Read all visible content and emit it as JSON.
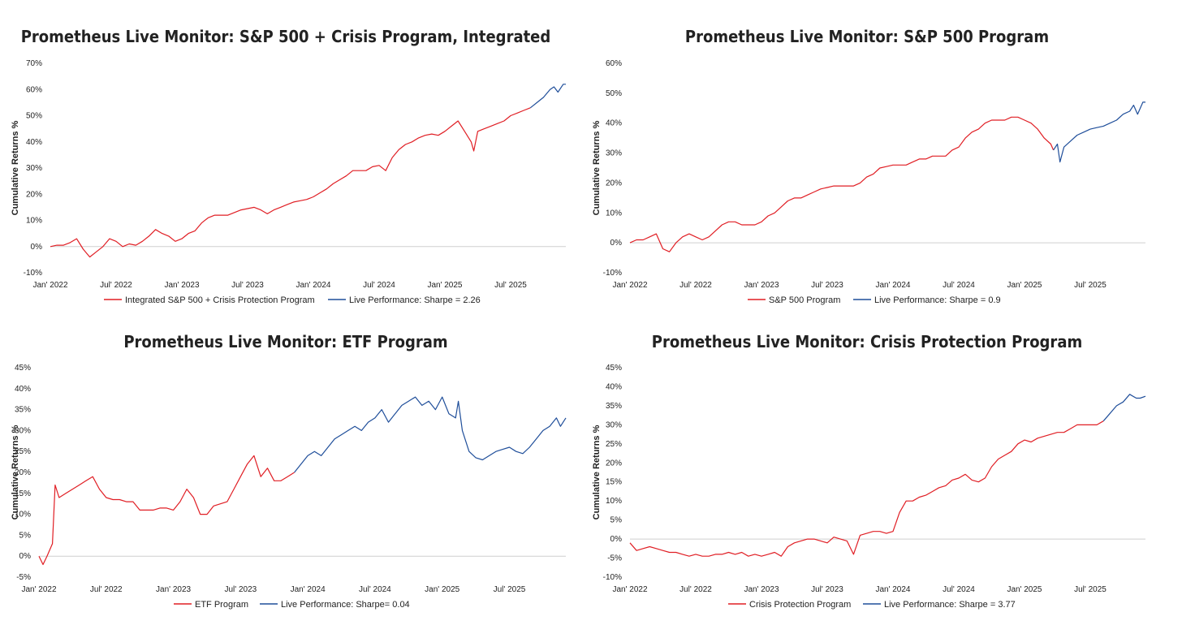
{
  "colors": {
    "backtest": "#e01e24",
    "live": "#1f4e9a",
    "axis": "#cfcfcf",
    "text": "#222222"
  },
  "chart_data": [
    {
      "type": "line",
      "title": "Prometheus Live Monitor: S&P 500 + Crisis Program, Integrated",
      "ylabel": "Cumulative Returns %",
      "xlabel": "",
      "ylim": [
        -10,
        70
      ],
      "yticks": [
        -10,
        0,
        10,
        20,
        30,
        40,
        50,
        60,
        70
      ],
      "ytick_labels": [
        "-10%",
        "0%",
        "10%",
        "20%",
        "30%",
        "40%",
        "50%",
        "60%",
        "70%"
      ],
      "xlim": [
        2022.0,
        2025.92
      ],
      "xticks": [
        2022.0,
        2022.5,
        2023.0,
        2023.5,
        2024.0,
        2024.5,
        2025.0,
        2025.5
      ],
      "xtick_labels": [
        "Jan' 2022",
        "Jul' 2022",
        "Jan' 2023",
        "Jul' 2023",
        "Jan' 2024",
        "Jul' 2024",
        "Jan' 2025",
        "Jul' 2025"
      ],
      "series": [
        {
          "name": "Integrated S&P 500 + Crisis Protection Program",
          "color": "backtest",
          "x": [
            2022.0,
            2022.05,
            2022.1,
            2022.15,
            2022.2,
            2022.25,
            2022.3,
            2022.35,
            2022.4,
            2022.45,
            2022.5,
            2022.55,
            2022.6,
            2022.65,
            2022.7,
            2022.75,
            2022.8,
            2022.85,
            2022.9,
            2022.95,
            2023.0,
            2023.05,
            2023.1,
            2023.15,
            2023.2,
            2023.25,
            2023.3,
            2023.35,
            2023.4,
            2023.45,
            2023.5,
            2023.55,
            2023.6,
            2023.65,
            2023.7,
            2023.75,
            2023.8,
            2023.85,
            2023.9,
            2023.95,
            2024.0,
            2024.05,
            2024.1,
            2024.15,
            2024.2,
            2024.25,
            2024.3,
            2024.35,
            2024.4,
            2024.45,
            2024.5,
            2024.55,
            2024.6,
            2024.65,
            2024.7,
            2024.75,
            2024.8,
            2024.85,
            2024.9,
            2024.95,
            2025.0,
            2025.05,
            2025.1,
            2025.15,
            2025.2,
            2025.22,
            2025.25,
            2025.3,
            2025.35,
            2025.4,
            2025.45,
            2025.5,
            2025.55,
            2025.6,
            2025.65
          ],
          "y": [
            0,
            0.5,
            0.5,
            1.5,
            3,
            -1,
            -4,
            -2,
            0,
            3,
            2,
            0,
            1,
            0.5,
            2,
            4,
            6.5,
            5,
            4,
            2,
            3,
            5,
            6,
            9,
            11,
            12,
            12,
            12,
            13,
            14,
            14.5,
            15,
            14,
            12.5,
            14,
            15,
            16,
            17,
            17.5,
            18,
            19,
            20.5,
            22,
            24,
            25.5,
            27,
            29,
            29,
            29,
            30.5,
            31,
            29,
            34,
            37,
            39,
            40,
            41.5,
            42.5,
            43,
            42.5,
            44,
            46,
            48,
            44,
            40,
            36.5,
            44,
            45,
            46,
            47,
            48,
            50,
            51,
            52,
            53
          ]
        },
        {
          "name": "Live Performance: Sharpe = 2.26",
          "color": "live",
          "x": [
            2025.65,
            2025.7,
            2025.75,
            2025.8,
            2025.83,
            2025.86,
            2025.9,
            2025.92
          ],
          "y": [
            53,
            55,
            57,
            60,
            61,
            59,
            62,
            62
          ]
        }
      ]
    },
    {
      "type": "line",
      "title": "Prometheus Live Monitor: S&P 500 Program",
      "ylabel": "Cumulative Returns %",
      "xlabel": "",
      "ylim": [
        -10,
        60
      ],
      "yticks": [
        -10,
        0,
        10,
        20,
        30,
        40,
        50,
        60
      ],
      "ytick_labels": [
        "-10%",
        "0%",
        "10%",
        "20%",
        "30%",
        "40%",
        "50%",
        "60%"
      ],
      "xlim": [
        2022.0,
        2025.92
      ],
      "xticks": [
        2022.0,
        2022.5,
        2023.0,
        2023.5,
        2024.0,
        2024.5,
        2025.0,
        2025.5
      ],
      "xtick_labels": [
        "Jan' 2022",
        "Jul' 2022",
        "Jan' 2023",
        "Jul' 2023",
        "Jan' 2024",
        "Jul' 2024",
        "Jan' 2025",
        "Jul' 2025"
      ],
      "series": [
        {
          "name": "S&P 500 Program",
          "color": "backtest",
          "x": [
            2022.0,
            2022.05,
            2022.1,
            2022.15,
            2022.2,
            2022.25,
            2022.3,
            2022.35,
            2022.4,
            2022.45,
            2022.5,
            2022.55,
            2022.6,
            2022.65,
            2022.7,
            2022.75,
            2022.8,
            2022.85,
            2022.9,
            2022.95,
            2023.0,
            2023.05,
            2023.1,
            2023.15,
            2023.2,
            2023.25,
            2023.3,
            2023.35,
            2023.4,
            2023.45,
            2023.5,
            2023.55,
            2023.6,
            2023.65,
            2023.7,
            2023.75,
            2023.8,
            2023.85,
            2023.9,
            2023.95,
            2024.0,
            2024.05,
            2024.1,
            2024.15,
            2024.2,
            2024.25,
            2024.3,
            2024.35,
            2024.4,
            2024.45,
            2024.5,
            2024.55,
            2024.6,
            2024.65,
            2024.7,
            2024.75,
            2024.8,
            2024.85,
            2024.9,
            2024.95,
            2025.0,
            2025.05,
            2025.1,
            2025.15,
            2025.2,
            2025.22
          ],
          "y": [
            0,
            1,
            1,
            2,
            3,
            -2,
            -3,
            0,
            2,
            3,
            2,
            1,
            2,
            4,
            6,
            7,
            7,
            6,
            6,
            6,
            7,
            9,
            10,
            12,
            14,
            15,
            15,
            16,
            17,
            18,
            18.5,
            19,
            19,
            19,
            19,
            20,
            22,
            23,
            25,
            25.5,
            26,
            26,
            26,
            27,
            28,
            28,
            29,
            29,
            29,
            31,
            32,
            35,
            37,
            38,
            40,
            41,
            41,
            41,
            42,
            42,
            41,
            40,
            38,
            35,
            33,
            31
          ]
        },
        {
          "name": "Live Performance: Sharpe = 0.9",
          "color": "live",
          "x": [
            2025.22,
            2025.25,
            2025.27,
            2025.3,
            2025.35,
            2025.4,
            2025.45,
            2025.5,
            2025.55,
            2025.6,
            2025.65,
            2025.7,
            2025.75,
            2025.8,
            2025.83,
            2025.86,
            2025.9,
            2025.92
          ],
          "y": [
            31,
            33,
            27,
            32,
            34,
            36,
            37,
            38,
            38.5,
            39,
            40,
            41,
            43,
            44,
            46,
            43,
            47,
            47
          ]
        }
      ]
    },
    {
      "type": "line",
      "title": "Prometheus Live Monitor: ETF Program",
      "ylabel": "Cumulative Returns %",
      "xlabel": "",
      "ylim": [
        -5,
        45
      ],
      "yticks": [
        -5,
        0,
        5,
        10,
        15,
        20,
        25,
        30,
        35,
        40,
        45
      ],
      "ytick_labels": [
        "-5%",
        "0%",
        "5%",
        "10%",
        "15%",
        "20%",
        "25%",
        "30%",
        "35%",
        "40%",
        "45%"
      ],
      "xlim": [
        2022.0,
        2025.92
      ],
      "xticks": [
        2022.0,
        2022.5,
        2023.0,
        2023.5,
        2024.0,
        2024.5,
        2025.0,
        2025.5
      ],
      "xtick_labels": [
        "Jan' 2022",
        "Jul' 2022",
        "Jan' 2023",
        "Jul' 2023",
        "Jan' 2024",
        "Jul' 2024",
        "Jan' 2025",
        "Jul' 2025"
      ],
      "series": [
        {
          "name": "ETF Program",
          "color": "backtest",
          "x": [
            2022.0,
            2022.03,
            2022.06,
            2022.1,
            2022.12,
            2022.15,
            2022.2,
            2022.25,
            2022.3,
            2022.35,
            2022.4,
            2022.45,
            2022.5,
            2022.55,
            2022.6,
            2022.65,
            2022.7,
            2022.75,
            2022.8,
            2022.85,
            2022.9,
            2022.95,
            2023.0,
            2023.05,
            2023.1,
            2023.15,
            2023.2,
            2023.25,
            2023.3,
            2023.35,
            2023.4,
            2023.45,
            2023.5,
            2023.55,
            2023.6,
            2023.65,
            2023.7,
            2023.75,
            2023.8,
            2023.85,
            2023.9
          ],
          "y": [
            0,
            -2,
            0,
            3,
            17,
            14,
            15,
            16,
            17,
            18,
            19,
            16,
            14,
            13.5,
            13.5,
            13,
            13,
            11,
            11,
            11,
            11.5,
            11.5,
            11,
            13,
            16,
            14,
            10,
            10,
            12,
            12.5,
            13,
            16,
            19,
            22,
            24,
            19,
            21,
            18,
            18,
            19,
            20
          ]
        },
        {
          "name": "Live Performance: Sharpe= 0.04",
          "color": "live",
          "x": [
            2023.9,
            2023.95,
            2024.0,
            2024.05,
            2024.1,
            2024.15,
            2024.2,
            2024.25,
            2024.3,
            2024.35,
            2024.4,
            2024.45,
            2024.5,
            2024.55,
            2024.6,
            2024.65,
            2024.7,
            2024.75,
            2024.8,
            2024.85,
            2024.9,
            2024.95,
            2025.0,
            2025.05,
            2025.1,
            2025.12,
            2025.15,
            2025.2,
            2025.25,
            2025.3,
            2025.35,
            2025.4,
            2025.45,
            2025.5,
            2025.55,
            2025.6,
            2025.65,
            2025.7,
            2025.75,
            2025.8,
            2025.85,
            2025.88,
            2025.92
          ],
          "y": [
            20,
            22,
            24,
            25,
            24,
            26,
            28,
            29,
            30,
            31,
            30,
            32,
            33,
            35,
            32,
            34,
            36,
            37,
            38,
            36,
            37,
            35,
            38,
            34,
            33,
            37,
            30,
            25,
            23.5,
            23,
            24,
            25,
            25.5,
            26,
            25,
            24.5,
            26,
            28,
            30,
            31,
            33,
            31,
            33
          ]
        }
      ]
    },
    {
      "type": "line",
      "title": "Prometheus Live Monitor: Crisis Protection Program",
      "ylabel": "Cumulative Returns %",
      "xlabel": "",
      "ylim": [
        -10,
        45
      ],
      "yticks": [
        -10,
        -5,
        0,
        5,
        10,
        15,
        20,
        25,
        30,
        35,
        40,
        45
      ],
      "ytick_labels": [
        "-10%",
        "-5%",
        "0%",
        "5%",
        "10%",
        "15%",
        "20%",
        "25%",
        "30%",
        "35%",
        "40%",
        "45%"
      ],
      "xlim": [
        2022.0,
        2025.92
      ],
      "xticks": [
        2022.0,
        2022.5,
        2023.0,
        2023.5,
        2024.0,
        2024.5,
        2025.0,
        2025.5
      ],
      "xtick_labels": [
        "Jan' 2022",
        "Jul' 2022",
        "Jan' 2023",
        "Jul' 2023",
        "Jan' 2024",
        "Jul' 2024",
        "Jan' 2025",
        "Jul' 2025"
      ],
      "series": [
        {
          "name": "Crisis Protection Program",
          "color": "backtest",
          "x": [
            2022.0,
            2022.05,
            2022.1,
            2022.15,
            2022.2,
            2022.25,
            2022.3,
            2022.35,
            2022.4,
            2022.45,
            2022.5,
            2022.55,
            2022.6,
            2022.65,
            2022.7,
            2022.75,
            2022.8,
            2022.85,
            2022.9,
            2022.95,
            2023.0,
            2023.05,
            2023.1,
            2023.15,
            2023.2,
            2023.25,
            2023.3,
            2023.35,
            2023.4,
            2023.45,
            2023.5,
            2023.55,
            2023.6,
            2023.65,
            2023.7,
            2023.75,
            2023.8,
            2023.85,
            2023.9,
            2023.95,
            2024.0,
            2024.05,
            2024.1,
            2024.15,
            2024.2,
            2024.25,
            2024.3,
            2024.35,
            2024.4,
            2024.45,
            2024.5,
            2024.55,
            2024.6,
            2024.65,
            2024.7,
            2024.75,
            2024.8,
            2024.85,
            2024.9,
            2024.95,
            2025.0,
            2025.05,
            2025.1,
            2025.15,
            2025.2,
            2025.25,
            2025.3,
            2025.35,
            2025.4,
            2025.45,
            2025.5,
            2025.55,
            2025.6
          ],
          "y": [
            -1,
            -3,
            -2.5,
            -2,
            -2.5,
            -3,
            -3.5,
            -3.5,
            -4,
            -4.5,
            -4,
            -4.5,
            -4.5,
            -4,
            -4,
            -3.5,
            -4,
            -3.5,
            -4.5,
            -4,
            -4.5,
            -4,
            -3.5,
            -4.5,
            -2,
            -1,
            -0.5,
            0,
            0,
            -0.5,
            -1,
            0.5,
            0,
            -0.5,
            -4,
            1,
            1.5,
            2,
            2,
            1.5,
            2,
            7,
            10,
            10,
            11,
            11.5,
            12.5,
            13.5,
            14,
            15.5,
            16,
            17,
            15.5,
            15,
            16,
            19,
            21,
            22,
            23,
            25,
            26,
            25.5,
            26.5,
            27,
            27.5,
            28,
            28,
            29,
            30,
            30,
            30,
            30,
            31
          ]
        },
        {
          "name": "Live Performance: Sharpe = 3.77",
          "color": "live",
          "x": [
            2025.6,
            2025.65,
            2025.7,
            2025.75,
            2025.8,
            2025.85,
            2025.88,
            2025.92
          ],
          "y": [
            31,
            33,
            35,
            36,
            38,
            37,
            37,
            37.5
          ]
        }
      ]
    }
  ]
}
